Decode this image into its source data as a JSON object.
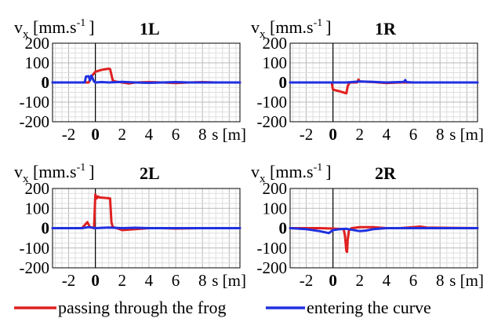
{
  "chart_data": [
    {
      "type": "line",
      "title": "1L",
      "ylabel_main": "v",
      "ylabel_sub": "x",
      "ylabel_unit": " [mm.s",
      "ylabel_exp": "-1",
      "ylabel_close": "]",
      "xlabel": "s [m]",
      "xlim": [
        -3.2,
        10.8
      ],
      "ylim": [
        -200,
        200
      ],
      "yticks": [
        "200",
        "100",
        "0",
        "-100",
        "-200"
      ],
      "xticks": [
        "-2",
        "0",
        "2",
        "4",
        "6",
        "8"
      ],
      "grid": true,
      "series": [
        {
          "name": "passing through the frog",
          "color": "#e02020",
          "x": [
            -3.2,
            -1.0,
            -0.5,
            -0.3,
            0.0,
            0.5,
            1.0,
            1.1,
            1.2,
            1.3,
            1.5,
            2.0,
            2.5,
            3.0,
            4.0,
            5.0,
            6.0,
            7.0,
            8.0,
            9.0,
            10.8
          ],
          "y": [
            0,
            0,
            0,
            30,
            55,
            65,
            70,
            68,
            40,
            10,
            5,
            0,
            -5,
            0,
            2,
            0,
            -3,
            0,
            2,
            0,
            0
          ]
        },
        {
          "name": "entering the curve",
          "color": "#2030e0",
          "x": [
            -3.2,
            -0.8,
            -0.7,
            -0.5,
            -0.4,
            -0.3,
            -0.1,
            0.0,
            0.5,
            1.0,
            2.0,
            3.0,
            4.0,
            5.0,
            6.0,
            7.0,
            8.0,
            9.0,
            10.8
          ],
          "y": [
            0,
            0,
            30,
            32,
            10,
            35,
            5,
            0,
            2,
            0,
            3,
            0,
            -2,
            0,
            2,
            0,
            0,
            0,
            0
          ]
        }
      ]
    },
    {
      "type": "line",
      "title": "1R",
      "ylabel_main": "v",
      "ylabel_sub": "x",
      "ylabel_unit": " [mm.s",
      "ylabel_exp": "-1",
      "ylabel_close": "]",
      "xlabel": "s [m]",
      "xlim": [
        -3.2,
        10.8
      ],
      "ylim": [
        -200,
        200
      ],
      "yticks": [
        "200",
        "100",
        "0",
        "-100",
        "-200"
      ],
      "xticks": [
        "-2",
        "0",
        "2",
        "4",
        "6",
        "8"
      ],
      "grid": true,
      "series": [
        {
          "name": "passing through the frog",
          "color": "#e02020",
          "x": [
            -3.2,
            -0.1,
            0.0,
            0.2,
            0.5,
            1.0,
            1.1,
            1.2,
            1.3,
            1.8,
            1.9,
            2.0,
            3.0,
            4.0,
            5.0,
            6.0,
            10.8
          ],
          "y": [
            0,
            0,
            -35,
            -40,
            -45,
            -55,
            -20,
            -5,
            0,
            0,
            15,
            5,
            2,
            -3,
            0,
            0,
            0
          ]
        },
        {
          "name": "entering the curve",
          "color": "#2030e0",
          "x": [
            -3.2,
            0.0,
            1.0,
            2.0,
            3.0,
            4.0,
            5.0,
            5.3,
            5.4,
            5.5,
            6.0,
            8.0,
            10.8
          ],
          "y": [
            0,
            0,
            0,
            5,
            3,
            0,
            2,
            3,
            12,
            2,
            0,
            0,
            0
          ]
        }
      ]
    },
    {
      "type": "line",
      "title": "2L",
      "ylabel_main": "v",
      "ylabel_sub": "x",
      "ylabel_unit": " [mm.s",
      "ylabel_exp": "-1",
      "ylabel_close": "]",
      "xlabel": "s [m]",
      "xlim": [
        -3.2,
        10.8
      ],
      "ylim": [
        -200,
        200
      ],
      "yticks": [
        "200",
        "100",
        "0",
        "-100",
        "-200"
      ],
      "xticks": [
        "-2",
        "0",
        "2",
        "4",
        "6",
        "8"
      ],
      "grid": true,
      "series": [
        {
          "name": "passing through the frog",
          "color": "#e02020",
          "x": [
            -3.2,
            -1.0,
            -0.6,
            -0.4,
            -0.1,
            0.0,
            0.1,
            0.2,
            0.3,
            1.1,
            1.2,
            1.3,
            1.6,
            2.0,
            3.0,
            4.0,
            5.0,
            6.0,
            8.0,
            10.8
          ],
          "y": [
            0,
            0,
            30,
            5,
            0,
            170,
            150,
            160,
            155,
            150,
            30,
            5,
            0,
            -10,
            -5,
            0,
            0,
            -2,
            0,
            0
          ]
        },
        {
          "name": "entering the curve",
          "color": "#2030e0",
          "x": [
            -3.2,
            -1.0,
            -0.5,
            0.0,
            1.0,
            2.0,
            3.0,
            4.0,
            5.0,
            6.0,
            8.0,
            10.8
          ],
          "y": [
            0,
            0,
            5,
            0,
            3,
            0,
            2,
            0,
            0,
            0,
            0,
            0
          ]
        }
      ]
    },
    {
      "type": "line",
      "title": "2R",
      "ylabel_main": "v",
      "ylabel_sub": "x",
      "ylabel_unit": " [mm.s",
      "ylabel_exp": "-1",
      "ylabel_close": "]",
      "xlabel": "s [m]",
      "xlim": [
        -3.2,
        10.8
      ],
      "ylim": [
        -200,
        200
      ],
      "yticks": [
        "200",
        "100",
        "0",
        "-100",
        "-200"
      ],
      "xticks": [
        "-2",
        "0",
        "2",
        "4",
        "6",
        "8"
      ],
      "grid": true,
      "series": [
        {
          "name": "passing through the frog",
          "color": "#e02020",
          "x": [
            -3.2,
            -1.0,
            0.0,
            0.8,
            0.9,
            1.0,
            1.05,
            1.1,
            1.2,
            1.4,
            2.0,
            3.0,
            4.0,
            5.0,
            6.0,
            6.5,
            7.0,
            8.0,
            10.8
          ],
          "y": [
            0,
            0,
            -2,
            -5,
            -40,
            -115,
            -120,
            -60,
            -10,
            0,
            5,
            5,
            0,
            0,
            5,
            8,
            3,
            2,
            0
          ]
        },
        {
          "name": "entering the curve",
          "color": "#2030e0",
          "x": [
            -3.2,
            -2.0,
            -1.0,
            -0.3,
            0.0,
            0.5,
            1.0,
            2.0,
            2.5,
            3.0,
            4.0,
            5.0,
            6.0,
            8.0,
            10.8
          ],
          "y": [
            0,
            -5,
            -15,
            -25,
            -10,
            -5,
            -3,
            -15,
            -12,
            -5,
            0,
            0,
            0,
            0,
            0
          ]
        }
      ]
    }
  ],
  "legend": {
    "placement": "bottom",
    "items": [
      {
        "label": "passing through the frog",
        "color": "#e02020"
      },
      {
        "label": "entering the curve",
        "color": "#2030e0"
      }
    ]
  }
}
